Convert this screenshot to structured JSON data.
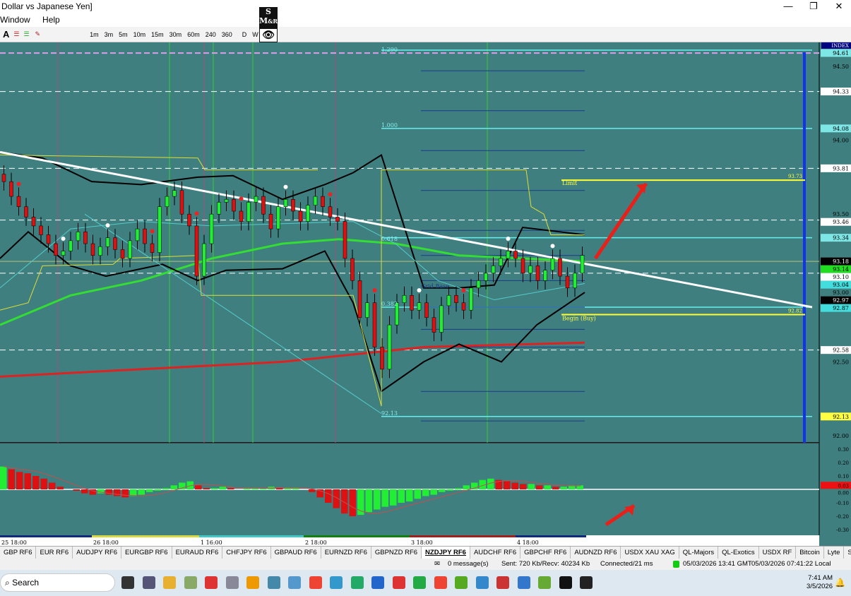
{
  "window": {
    "title": "Dollar vs Japanese Yen]",
    "minimize": "—",
    "maximize": "❐",
    "close": "✕",
    "menu": [
      "Window",
      "Help"
    ]
  },
  "toolbar": {
    "timeframes": [
      "1m",
      "3m",
      "5m",
      "10m",
      "15m",
      "30m",
      "60m",
      "240",
      "360",
      "D",
      "W",
      "M"
    ]
  },
  "logo": {
    "text": "SMLR"
  },
  "chart": {
    "symbol_badge": "INDEX",
    "price_ticks": [
      "94.50",
      "94.00",
      "93.50",
      "93.00",
      "92.50",
      "92.00"
    ],
    "price_labels": [
      {
        "v": 94.61,
        "t": "94.61",
        "bg": "#7fe6e6"
      },
      {
        "v": 94.33,
        "t": "94.33",
        "bg": "#ffffff"
      },
      {
        "v": 94.08,
        "t": "94.08",
        "bg": "#7fe6e6"
      },
      {
        "v": 93.81,
        "t": "93.81",
        "bg": "#ffffff"
      },
      {
        "v": 93.46,
        "t": "93.46",
        "bg": "#ffffff"
      },
      {
        "v": 93.34,
        "t": "93.34",
        "bg": "#7fe6e6"
      },
      {
        "v": 93.18,
        "t": "93.18",
        "bg": "#000000"
      },
      {
        "v": 93.14,
        "t": "93.14",
        "bg": "#22dd22"
      },
      {
        "v": 93.1,
        "t": "93.10",
        "bg": "#ffffff"
      },
      {
        "v": 93.04,
        "t": "93.04",
        "bg": "#44dddd"
      },
      {
        "v": 92.97,
        "t": "92.97",
        "bg": "#000000"
      },
      {
        "v": 92.87,
        "t": "92.87",
        "bg": "#44dddd"
      },
      {
        "v": 92.58,
        "t": "92.58",
        "bg": "#ffffff"
      },
      {
        "v": 92.13,
        "t": "92.13",
        "bg": "#ffff44"
      }
    ],
    "fib_labels": [
      {
        "v": 94.59,
        "t": "1.290"
      },
      {
        "v": 94.08,
        "t": "1.000"
      },
      {
        "v": 93.31,
        "t": "0.618"
      },
      {
        "v": 92.87,
        "t": "0.382"
      },
      {
        "v": 92.13,
        "t": "92.13"
      }
    ],
    "grid_base_label": "Grid Base",
    "limit_label": "Limit",
    "limit_value": "93.73",
    "begin_label": "Begin (Buy)",
    "begin_value": "92.82",
    "closes": [
      93.72,
      93.62,
      93.55,
      93.48,
      93.42,
      93.36,
      93.3,
      93.22,
      93.25,
      93.32,
      93.38,
      93.3,
      93.22,
      93.28,
      93.34,
      93.26,
      93.2,
      93.32,
      93.4,
      93.3,
      93.24,
      93.55,
      93.62,
      93.66,
      93.5,
      93.42,
      93.08,
      93.3,
      93.5,
      93.58,
      93.6,
      93.52,
      93.45,
      93.58,
      93.62,
      93.5,
      93.4,
      93.55,
      93.6,
      93.52,
      93.45,
      93.56,
      93.62,
      93.55,
      93.48,
      93.45,
      93.2,
      93.05,
      92.8,
      92.9,
      92.6,
      92.45,
      92.75,
      92.9,
      92.95,
      92.85,
      92.9,
      92.8,
      92.7,
      92.88,
      92.95,
      92.9,
      92.85,
      93.0,
      93.05,
      93.1,
      93.15,
      93.2,
      93.25,
      93.2,
      93.1,
      93.15,
      93.05,
      93.12,
      93.2,
      93.08,
      93.0,
      93.1,
      93.22
    ],
    "time_labels": [
      "25 18:00",
      "26 18:00",
      "1 16:00",
      "2 18:00",
      "3 18:00",
      "4 18:00"
    ],
    "osc_ticks": [
      "0.30",
      "0.20",
      "0.10",
      "0.00",
      "-0.10",
      "-0.20",
      "-0.30"
    ],
    "osc_value": "0.03",
    "osc_hist": [
      0.17,
      0.15,
      0.13,
      0.12,
      0.1,
      0.08,
      0.05,
      0.02,
      0,
      -0.01,
      -0.03,
      -0.04,
      -0.03,
      -0.04,
      -0.05,
      -0.06,
      -0.05,
      -0.04,
      -0.02,
      -0.01,
      0.01,
      0.03,
      0.05,
      0.06,
      0.03,
      0.01,
      0.01,
      0.02,
      0.01,
      0.0,
      0.01,
      0.01,
      0.01,
      0.02,
      0.01,
      0.01,
      0.01,
      0.0,
      -0.02,
      -0.06,
      -0.1,
      -0.14,
      -0.18,
      -0.2,
      -0.19,
      -0.17,
      -0.15,
      -0.13,
      -0.12,
      -0.1,
      -0.09,
      -0.07,
      -0.05,
      -0.04,
      -0.02,
      -0.01,
      0.01,
      0.03,
      0.05,
      0.07,
      0.08,
      0.07,
      0.06,
      0.05,
      0.04,
      0.04,
      0.03,
      0.03,
      0.02,
      0.02,
      0.03,
      0.03
    ],
    "colors": {
      "background": "#407f7f",
      "bull": "#22ee33",
      "bear": "#dd1111",
      "trendline": "#ffffff",
      "fib": "#66eeee",
      "grid_levels": "#1a3a8a",
      "ma_green": "#33dd33",
      "ma_red": "#dd2222",
      "bands": "#000000",
      "limit": "#ffff33",
      "period_line": "#1133ee"
    }
  },
  "tabs": {
    "items": [
      "GBP RF6",
      "EUR RF6",
      "AUDJPY RF6",
      "EURGBP RF6",
      "EURAUD RF6",
      "CHFJPY RF6",
      "GBPAUD RF6",
      "EURNZD RF6",
      "GBPNZD RF6",
      "NZDJPY RF6",
      "AUDCHF RF6",
      "GBPCHF RF6",
      "AUDNZD RF6",
      "USDX XAU XAG",
      "QL-Majors",
      "QL-Exotics",
      "USDX RF",
      "Bitcoin",
      "Lyte",
      "SP500 RF6",
      "DJIA",
      "XR"
    ],
    "active": 9
  },
  "status": {
    "messages": "0 message(s)",
    "traffic": "Sent: 720 Kb/Recv: 40234 Kb",
    "connection": "Connected/21 ms",
    "gmt": "05/03/2026 13:41 GMT",
    "local": "05/03/2026 07:41:22 Local"
  },
  "taskbar": {
    "search_placeholder": "Search",
    "time": "7:41 AM",
    "date": "3/5/2026"
  }
}
